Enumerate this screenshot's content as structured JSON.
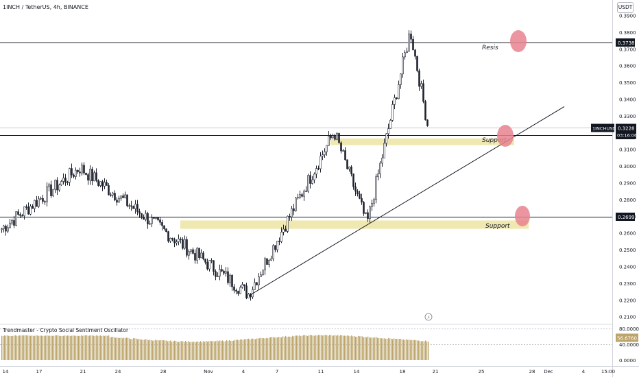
{
  "header": {
    "symbol_title": "1INCH / TetherUS, 4h, BINANCE",
    "currency": "USDT"
  },
  "oscillator": {
    "title": "Trendmaster - Crypto Social Sentiment Oscillator",
    "value_label": "56.6760",
    "axis_labels": [
      "80.0000",
      "40.0000",
      "0.0000"
    ],
    "value_color": "#bca46a"
  },
  "colors": {
    "up": "#1e222d",
    "down": "#1e222d",
    "zone_fill": "#efe8b0",
    "marker_fill": "#e8828f",
    "line": "#131722"
  },
  "chart_data": {
    "type": "candlestick",
    "title": "1INCH / TetherUS, 4h, BINANCE",
    "ylim": [
      0.2065,
      0.3985
    ],
    "y_ticks": [
      "0.3900",
      "0.3800",
      "0.3700",
      "0.3600",
      "0.3500",
      "0.3400",
      "0.3300",
      "0.3200",
      "0.3100",
      "0.3000",
      "0.2900",
      "0.2800",
      "0.2700",
      "0.2600",
      "0.2500",
      "0.2400",
      "0.2300",
      "0.2200",
      "0.2100"
    ],
    "x_ticks": [
      "14",
      "17",
      "21",
      "24",
      "28",
      "Nov",
      "4",
      "7",
      "11",
      "14",
      "18",
      "21",
      "25",
      "28",
      "Dec",
      "4",
      "15:00"
    ],
    "current_price": {
      "symbol": "1INCHUSDT",
      "price": "0.3228",
      "countdown": "03:16:06"
    },
    "horizontal_levels": [
      {
        "value": 0.3738,
        "label": "0.3738"
      },
      {
        "value": 0.3185,
        "label": "0.3185"
      },
      {
        "value": 0.2699,
        "label": "0.2699"
      }
    ],
    "annotations": [
      {
        "text": "Resis"
      },
      {
        "text": "Support"
      },
      {
        "text": "Support"
      }
    ],
    "key_swings": [
      {
        "label": "start",
        "value": 0.262
      },
      {
        "label": "Oct 21 high",
        "value": 0.299
      },
      {
        "label": "Nov 4 low",
        "value": 0.2235
      },
      {
        "label": "Nov 12 high",
        "value": 0.3205
      },
      {
        "label": "Nov 16 low",
        "value": 0.2655
      },
      {
        "label": "Nov 19 high",
        "value": 0.381
      },
      {
        "label": "last",
        "value": 0.3228
      }
    ]
  }
}
